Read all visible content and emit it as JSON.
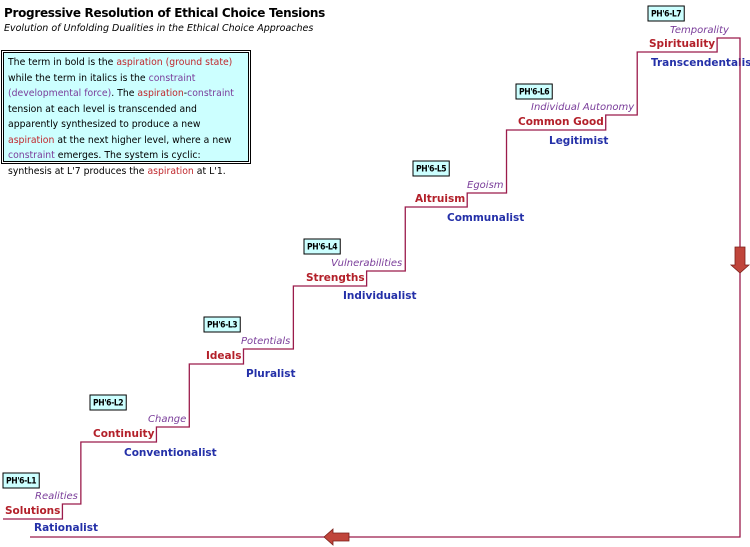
{
  "header": {
    "title": "Progressive Resolution of Ethical Choice Tensions",
    "subtitle": "Evolution of Unfolding Dualities in the Ethical Choice Approaches"
  },
  "note": {
    "segments": [
      "The term in bold is the ",
      "aspiration (ground state)",
      " while the term in italics is the ",
      "constraint (developmental force)",
      ".  The ",
      "aspiration",
      "-",
      "constraint",
      " tension at each level is transcended and  apparently synthesized to produce a new ",
      "aspiration",
      " at the next higher level, where a new ",
      "constraint",
      " emerges. The system is cyclic: synthesis at L'7 produces the ",
      "aspiration",
      " at L'1."
    ]
  },
  "levels": [
    {
      "tag": "PH'6-L1",
      "constraint": "Realities",
      "aspiration": "Solutions",
      "approach": "Rationalist"
    },
    {
      "tag": "PH'6-L2",
      "constraint": "Change",
      "aspiration": "Continuity",
      "approach": "Conventionalist"
    },
    {
      "tag": "PH'6-L3",
      "constraint": "Potentials",
      "aspiration": "Ideals",
      "approach": "Pluralist"
    },
    {
      "tag": "PH'6-L4",
      "constraint": "Vulnerabilities",
      "aspiration": "Strengths",
      "approach": "Individualist"
    },
    {
      "tag": "PH'6-L5",
      "constraint": "Egoism",
      "aspiration": "Altruism",
      "approach": "Communalist"
    },
    {
      "tag": "PH'6-L6",
      "constraint": "Individual Autonomy",
      "aspiration": "Common Good",
      "approach": "Legitimist"
    },
    {
      "tag": "PH'6-L7",
      "constraint": "Temporality",
      "aspiration": "Spirituality",
      "approach": "Transcendentalist"
    }
  ]
}
